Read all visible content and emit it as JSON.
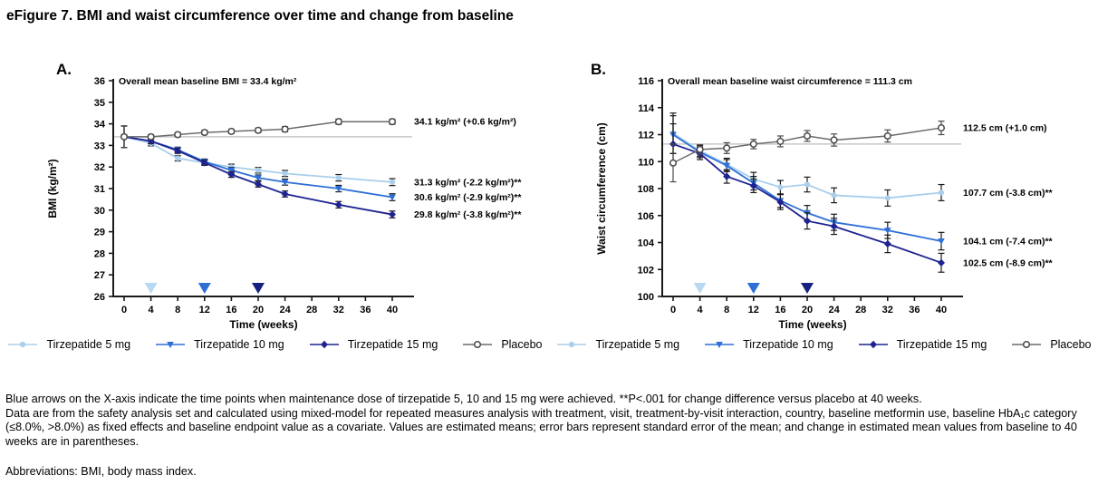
{
  "title": "eFigure 7. BMI and waist circumference over time and change from baseline",
  "footnotes": {
    "line1": "Blue arrows on the X-axis indicate the time points when maintenance dose of tirzepatide 5, 10 and 15 mg were achieved. **P<.001 for change difference versus placebo at 40 weeks.",
    "line2": "Data are from the safety analysis set and calculated using mixed-model for repeated measures analysis with treatment, visit, treatment-by-visit interaction, country, baseline metformin use, baseline HbA₁c category (≤8.0%, >8.0%) as fixed effects and baseline endpoint value as a covariate. Values are estimated means; error bars represent standard error of the mean; and change in estimated mean values from baseline to 40 weeks are in parentheses.",
    "abbreviations": "Abbreviations: BMI, body mass index."
  },
  "chart_data": [
    {
      "type": "line",
      "panel_label": "A.",
      "annotation": "Overall mean baseline BMI = 33.4 kg/m²",
      "baseline_value": 33.4,
      "xlabel": "Time (weeks)",
      "ylabel": "BMI (kg/m²)",
      "ylim": [
        26,
        36
      ],
      "ytick_step": 1,
      "xticks": [
        0,
        4,
        8,
        12,
        16,
        20,
        24,
        28,
        32,
        36,
        40
      ],
      "x": [
        0,
        4,
        8,
        12,
        16,
        20,
        24,
        32,
        40
      ],
      "grid": false,
      "legend_position": "bottom",
      "series": [
        {
          "name": "Tirzepatide 5 mg",
          "color": "#a9cfec",
          "marker": "circle",
          "values": [
            33.4,
            33.1,
            32.4,
            32.2,
            32.0,
            31.85,
            31.7,
            31.5,
            31.3
          ],
          "err": [
            0.5,
            0.12,
            0.12,
            0.12,
            0.13,
            0.13,
            0.14,
            0.15,
            0.16
          ],
          "end_label": "31.3 kg/m² (-2.2 kg/m²)**"
        },
        {
          "name": "Tirzepatide 10 mg",
          "color": "#2e6fd6",
          "marker": "triangle-down",
          "values": [
            33.4,
            33.2,
            32.8,
            32.25,
            31.85,
            31.5,
            31.3,
            31.0,
            30.6
          ],
          "err": [
            0.5,
            0.12,
            0.12,
            0.12,
            0.13,
            0.13,
            0.14,
            0.15,
            0.16
          ],
          "end_label": "30.6 kg/m² (-2.9 kg/m²)**"
        },
        {
          "name": "Tirzepatide 15 mg",
          "color": "#1f2390",
          "marker": "diamond",
          "values": [
            33.4,
            33.2,
            32.75,
            32.2,
            31.65,
            31.2,
            30.75,
            30.25,
            29.8
          ],
          "err": [
            0.5,
            0.12,
            0.12,
            0.12,
            0.13,
            0.13,
            0.14,
            0.15,
            0.16
          ],
          "end_label": "29.8 kg/m² (-3.8 kg/m²)**"
        },
        {
          "name": "Placebo",
          "color": "#6b6b6b",
          "marker": "circle-open",
          "width": 1.5,
          "err_color": "#4a4a4a",
          "values": [
            33.4,
            33.4,
            33.5,
            33.6,
            33.65,
            33.7,
            33.75,
            34.1,
            34.1
          ],
          "err": [
            0.5,
            0.1,
            0.1,
            0.1,
            0.1,
            0.1,
            0.12,
            0.12,
            0.12
          ],
          "end_label": "34.1 kg/m² (+0.6 kg/m²)"
        }
      ],
      "dose_arrows": [
        {
          "week": 4,
          "color": "#b9d9f2"
        },
        {
          "week": 12,
          "color": "#2e6fd6"
        },
        {
          "week": 20,
          "color": "#15217e"
        }
      ]
    },
    {
      "type": "line",
      "panel_label": "B.",
      "annotation": "Overall mean baseline waist circumference = 111.3 cm",
      "baseline_value": 111.3,
      "xlabel": "Time (weeks)",
      "ylabel": "Waist circumference (cm)",
      "ylim": [
        100,
        116
      ],
      "ytick_step": 2,
      "xticks": [
        0,
        4,
        8,
        12,
        16,
        20,
        24,
        28,
        32,
        36,
        40
      ],
      "x": [
        0,
        4,
        8,
        12,
        16,
        20,
        24,
        32,
        40
      ],
      "grid": false,
      "legend_position": "bottom",
      "series": [
        {
          "name": "Tirzepatide 5 mg",
          "color": "#a9cfec",
          "marker": "circle",
          "values": [
            112.1,
            110.8,
            109.8,
            108.7,
            108.1,
            108.3,
            107.5,
            107.3,
            107.7
          ],
          "err": [
            1.5,
            0.4,
            0.45,
            0.5,
            0.5,
            0.55,
            0.55,
            0.6,
            0.6
          ],
          "end_label": "107.7 cm (-3.8 cm)**"
        },
        {
          "name": "Tirzepatide 10 mg",
          "color": "#2e6fd6",
          "marker": "triangle-down",
          "values": [
            112.0,
            110.7,
            109.7,
            108.4,
            107.1,
            106.2,
            105.5,
            104.9,
            104.1
          ],
          "err": [
            1.4,
            0.4,
            0.45,
            0.5,
            0.5,
            0.55,
            0.6,
            0.6,
            0.65
          ],
          "end_label": "104.1 cm (-7.4 cm)**"
        },
        {
          "name": "Tirzepatide 15 mg",
          "color": "#1f2390",
          "marker": "diamond",
          "values": [
            111.3,
            110.6,
            108.9,
            108.2,
            107.0,
            105.6,
            105.2,
            103.9,
            102.5
          ],
          "err": [
            1.5,
            0.45,
            0.5,
            0.5,
            0.55,
            0.6,
            0.6,
            0.65,
            0.7
          ],
          "end_label": "102.5 cm (-8.9 cm)**"
        },
        {
          "name": "Placebo",
          "color": "#6b6b6b",
          "marker": "circle-open",
          "width": 1.5,
          "err_color": "#4a4a4a",
          "values": [
            109.9,
            110.9,
            111.0,
            111.3,
            111.5,
            111.9,
            111.6,
            111.9,
            112.5
          ],
          "err": [
            1.4,
            0.35,
            0.4,
            0.35,
            0.4,
            0.4,
            0.45,
            0.45,
            0.5
          ],
          "end_label": "112.5 cm (+1.0 cm)"
        }
      ],
      "dose_arrows": [
        {
          "week": 4,
          "color": "#b9d9f2"
        },
        {
          "week": 12,
          "color": "#2e6fd6"
        },
        {
          "week": 20,
          "color": "#15217e"
        }
      ]
    }
  ]
}
